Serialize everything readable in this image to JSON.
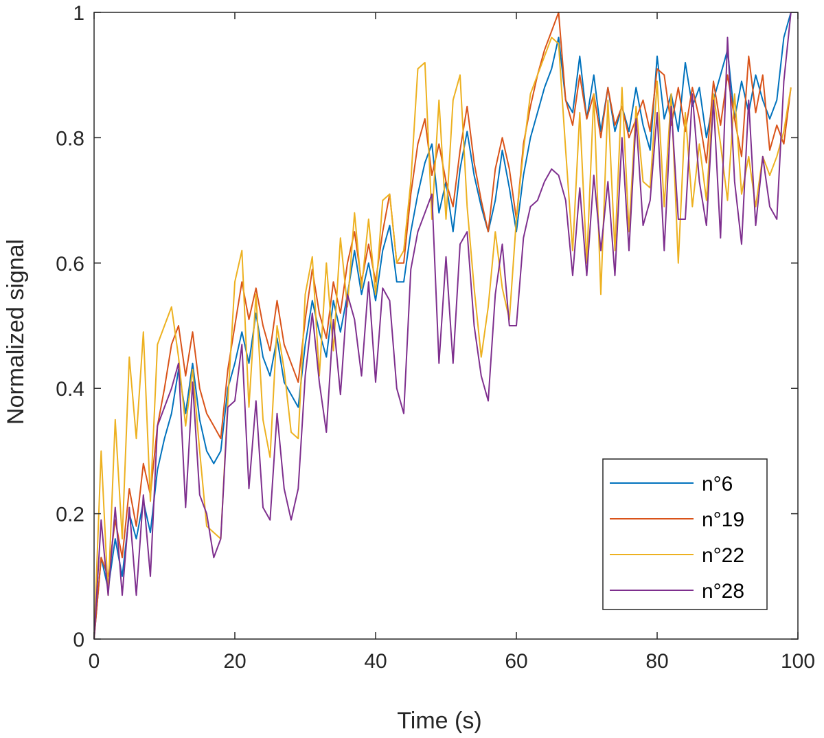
{
  "chart_data": {
    "type": "line",
    "title": "",
    "xlabel": "Time (s)",
    "ylabel": "Normalized signal",
    "xlim": [
      0,
      100
    ],
    "ylim": [
      0,
      1
    ],
    "xticks": [
      0,
      20,
      40,
      60,
      80,
      100
    ],
    "xtick_labels": [
      "0",
      "20",
      "40",
      "60",
      "80",
      "100"
    ],
    "yticks": [
      0,
      0.2,
      0.4,
      0.6,
      0.8,
      1
    ],
    "ytick_labels": [
      "0",
      "0.2",
      "0.4",
      "0.6",
      "0.8",
      "1"
    ],
    "grid": false,
    "legend_position": "bottom-right",
    "series": [
      {
        "name": "n°6",
        "color": "#0072BD",
        "x": [
          0,
          1,
          2,
          3,
          4,
          5,
          6,
          7,
          8,
          9,
          10,
          11,
          12,
          13,
          14,
          15,
          16,
          17,
          18,
          19,
          20,
          21,
          22,
          23,
          24,
          25,
          26,
          27,
          28,
          29,
          30,
          31,
          32,
          33,
          34,
          35,
          36,
          37,
          38,
          39,
          40,
          41,
          42,
          43,
          44,
          45,
          46,
          47,
          48,
          49,
          50,
          51,
          52,
          53,
          54,
          55,
          56,
          57,
          58,
          59,
          60,
          61,
          62,
          63,
          64,
          65,
          66,
          67,
          68,
          69,
          70,
          71,
          72,
          73,
          74,
          75,
          76,
          77,
          78,
          79,
          80,
          81,
          82,
          83,
          84,
          85,
          86,
          87,
          88,
          89,
          90,
          91,
          92,
          93,
          94,
          95,
          96,
          97,
          98,
          99
        ],
        "values": [
          0.0,
          0.13,
          0.08,
          0.16,
          0.1,
          0.2,
          0.16,
          0.22,
          0.17,
          0.27,
          0.32,
          0.36,
          0.43,
          0.36,
          0.44,
          0.35,
          0.3,
          0.28,
          0.3,
          0.4,
          0.44,
          0.49,
          0.44,
          0.52,
          0.45,
          0.42,
          0.48,
          0.41,
          0.39,
          0.37,
          0.47,
          0.54,
          0.49,
          0.45,
          0.54,
          0.49,
          0.55,
          0.62,
          0.55,
          0.6,
          0.54,
          0.62,
          0.66,
          0.57,
          0.57,
          0.65,
          0.71,
          0.76,
          0.79,
          0.68,
          0.73,
          0.65,
          0.75,
          0.81,
          0.74,
          0.69,
          0.65,
          0.7,
          0.78,
          0.72,
          0.65,
          0.74,
          0.8,
          0.84,
          0.88,
          0.91,
          0.96,
          0.86,
          0.84,
          0.93,
          0.83,
          0.9,
          0.81,
          0.88,
          0.81,
          0.85,
          0.81,
          0.88,
          0.82,
          0.78,
          0.93,
          0.83,
          0.87,
          0.81,
          0.92,
          0.85,
          0.88,
          0.8,
          0.86,
          0.9,
          0.94,
          0.83,
          0.89,
          0.84,
          0.9,
          0.86,
          0.83,
          0.86,
          0.96,
          1.0
        ]
      },
      {
        "name": "n°19",
        "color": "#D95319",
        "x": [
          0,
          1,
          2,
          3,
          4,
          5,
          6,
          7,
          8,
          9,
          10,
          11,
          12,
          13,
          14,
          15,
          16,
          17,
          18,
          19,
          20,
          21,
          22,
          23,
          24,
          25,
          26,
          27,
          28,
          29,
          30,
          31,
          32,
          33,
          34,
          35,
          36,
          37,
          38,
          39,
          40,
          41,
          42,
          43,
          44,
          45,
          46,
          47,
          48,
          49,
          50,
          51,
          52,
          53,
          54,
          55,
          56,
          57,
          58,
          59,
          60,
          61,
          62,
          63,
          64,
          65,
          66,
          67,
          68,
          69,
          70,
          71,
          72,
          73,
          74,
          75,
          76,
          77,
          78,
          79,
          80,
          81,
          82,
          83,
          84,
          85,
          86,
          87,
          88,
          89,
          90,
          91,
          92,
          93,
          94,
          95,
          96,
          97,
          98,
          99
        ],
        "values": [
          0.0,
          0.13,
          0.1,
          0.19,
          0.13,
          0.24,
          0.18,
          0.28,
          0.23,
          0.34,
          0.4,
          0.47,
          0.5,
          0.42,
          0.49,
          0.4,
          0.36,
          0.34,
          0.32,
          0.43,
          0.5,
          0.57,
          0.51,
          0.56,
          0.5,
          0.46,
          0.54,
          0.47,
          0.44,
          0.41,
          0.51,
          0.59,
          0.52,
          0.48,
          0.57,
          0.52,
          0.6,
          0.65,
          0.57,
          0.63,
          0.57,
          0.65,
          0.71,
          0.6,
          0.6,
          0.71,
          0.79,
          0.83,
          0.74,
          0.79,
          0.73,
          0.69,
          0.78,
          0.85,
          0.76,
          0.7,
          0.65,
          0.75,
          0.8,
          0.75,
          0.67,
          0.79,
          0.85,
          0.9,
          0.94,
          0.97,
          1.0,
          0.86,
          0.82,
          0.9,
          0.83,
          0.87,
          0.8,
          0.88,
          0.82,
          0.85,
          0.8,
          0.83,
          0.86,
          0.81,
          0.91,
          0.9,
          0.82,
          0.88,
          0.81,
          0.88,
          0.83,
          0.76,
          0.89,
          0.82,
          0.9,
          0.83,
          0.77,
          0.93,
          0.84,
          0.9,
          0.78,
          0.82,
          0.79,
          0.88
        ]
      },
      {
        "name": "n°22",
        "color": "#EDB120",
        "x": [
          0,
          1,
          2,
          3,
          4,
          5,
          6,
          7,
          8,
          9,
          10,
          11,
          12,
          13,
          14,
          15,
          16,
          17,
          18,
          19,
          20,
          21,
          22,
          23,
          24,
          25,
          26,
          27,
          28,
          29,
          30,
          31,
          32,
          33,
          34,
          35,
          36,
          37,
          38,
          39,
          40,
          41,
          42,
          43,
          44,
          45,
          46,
          47,
          48,
          49,
          50,
          51,
          52,
          53,
          54,
          55,
          56,
          57,
          58,
          59,
          60,
          61,
          62,
          63,
          64,
          65,
          66,
          67,
          68,
          69,
          70,
          71,
          72,
          73,
          74,
          75,
          76,
          77,
          78,
          79,
          80,
          81,
          82,
          83,
          84,
          85,
          86,
          87,
          88,
          89,
          90,
          91,
          92,
          93,
          94,
          95,
          96,
          97,
          98,
          99
        ],
        "values": [
          0.0,
          0.3,
          0.07,
          0.35,
          0.16,
          0.45,
          0.32,
          0.49,
          0.22,
          0.47,
          0.5,
          0.53,
          0.45,
          0.34,
          0.43,
          0.3,
          0.18,
          0.17,
          0.16,
          0.38,
          0.57,
          0.62,
          0.37,
          0.55,
          0.35,
          0.29,
          0.5,
          0.43,
          0.33,
          0.32,
          0.55,
          0.61,
          0.42,
          0.6,
          0.46,
          0.64,
          0.53,
          0.68,
          0.56,
          0.67,
          0.55,
          0.7,
          0.71,
          0.6,
          0.62,
          0.73,
          0.91,
          0.92,
          0.67,
          0.86,
          0.67,
          0.86,
          0.9,
          0.69,
          0.56,
          0.45,
          0.53,
          0.65,
          0.56,
          0.51,
          0.67,
          0.78,
          0.87,
          0.9,
          0.93,
          0.96,
          0.95,
          0.78,
          0.62,
          0.84,
          0.6,
          0.87,
          0.55,
          0.86,
          0.62,
          0.88,
          0.65,
          0.85,
          0.73,
          0.72,
          0.89,
          0.69,
          0.87,
          0.6,
          0.84,
          0.69,
          0.79,
          0.7,
          0.87,
          0.79,
          0.7,
          0.87,
          0.71,
          0.77,
          0.69,
          0.77,
          0.74,
          0.77,
          0.81,
          0.88
        ]
      },
      {
        "name": "n°28",
        "color": "#7E2F8E",
        "x": [
          0,
          1,
          2,
          3,
          4,
          5,
          6,
          7,
          8,
          9,
          10,
          11,
          12,
          13,
          14,
          15,
          16,
          17,
          18,
          19,
          20,
          21,
          22,
          23,
          24,
          25,
          26,
          27,
          28,
          29,
          30,
          31,
          32,
          33,
          34,
          35,
          36,
          37,
          38,
          39,
          40,
          41,
          42,
          43,
          44,
          45,
          46,
          47,
          48,
          49,
          50,
          51,
          52,
          53,
          54,
          55,
          56,
          57,
          58,
          59,
          60,
          61,
          62,
          63,
          64,
          65,
          66,
          67,
          68,
          69,
          70,
          71,
          72,
          73,
          74,
          75,
          76,
          77,
          78,
          79,
          80,
          81,
          82,
          83,
          84,
          85,
          86,
          87,
          88,
          89,
          90,
          91,
          92,
          93,
          94,
          95,
          96,
          97,
          98,
          99
        ],
        "values": [
          0.0,
          0.19,
          0.07,
          0.21,
          0.07,
          0.21,
          0.07,
          0.23,
          0.1,
          0.34,
          0.37,
          0.4,
          0.44,
          0.21,
          0.41,
          0.23,
          0.2,
          0.13,
          0.16,
          0.37,
          0.38,
          0.47,
          0.24,
          0.38,
          0.21,
          0.19,
          0.36,
          0.24,
          0.19,
          0.24,
          0.42,
          0.52,
          0.41,
          0.33,
          0.51,
          0.39,
          0.55,
          0.51,
          0.42,
          0.57,
          0.41,
          0.56,
          0.54,
          0.4,
          0.36,
          0.59,
          0.65,
          0.68,
          0.71,
          0.44,
          0.61,
          0.44,
          0.63,
          0.65,
          0.5,
          0.42,
          0.38,
          0.55,
          0.63,
          0.5,
          0.5,
          0.64,
          0.69,
          0.7,
          0.73,
          0.75,
          0.74,
          0.7,
          0.58,
          0.72,
          0.58,
          0.74,
          0.62,
          0.73,
          0.58,
          0.8,
          0.62,
          0.83,
          0.66,
          0.7,
          0.84,
          0.62,
          0.85,
          0.67,
          0.67,
          0.87,
          0.73,
          0.66,
          0.86,
          0.64,
          0.96,
          0.73,
          0.63,
          0.86,
          0.66,
          0.77,
          0.69,
          0.67,
          0.89,
          1.0
        ]
      }
    ]
  }
}
